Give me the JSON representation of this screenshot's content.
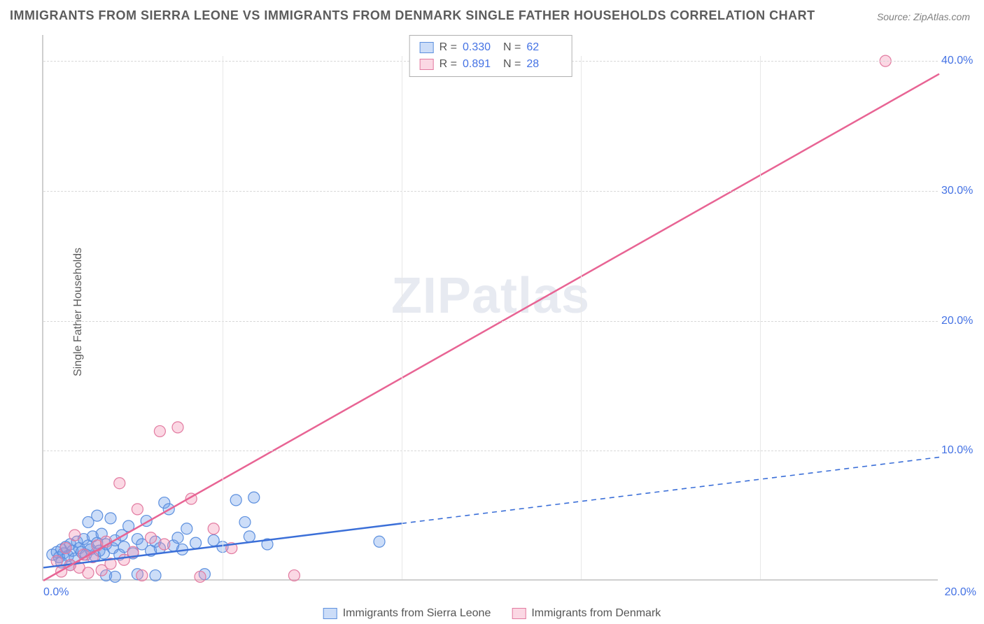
{
  "title": "IMMIGRANTS FROM SIERRA LEONE VS IMMIGRANTS FROM DENMARK SINGLE FATHER HOUSEHOLDS CORRELATION CHART",
  "source": "Source: ZipAtlas.com",
  "ylabel": "Single Father Households",
  "watermark_a": "ZIP",
  "watermark_b": "atlas",
  "chart": {
    "type": "scatter",
    "xlim": [
      0,
      20
    ],
    "ylim": [
      0,
      42
    ],
    "xticks": [
      {
        "v": 0,
        "label": "0.0%"
      },
      {
        "v": 20,
        "label": "20.0%"
      }
    ],
    "yticks": [
      {
        "v": 10,
        "label": "10.0%"
      },
      {
        "v": 20,
        "label": "20.0%"
      },
      {
        "v": 30,
        "label": "30.0%"
      },
      {
        "v": 40,
        "label": "40.0%"
      }
    ],
    "x_gridlines": [
      4,
      8,
      12,
      16
    ],
    "background_color": "#ffffff",
    "grid_color": "#e8e8e8",
    "axis_color": "#cfcfcf",
    "tick_font_color": "#4472e4",
    "label_font_color": "#5c5c5c",
    "title_font_color": "#5c5c5c",
    "title_fontsize": 18,
    "label_fontsize": 16,
    "tick_fontsize": 16,
    "marker_radius": 8,
    "marker_stroke_width": 1.2,
    "trend_line_width_solid": 2.5,
    "trend_line_width_dash": 1.6
  },
  "series": [
    {
      "name": "Immigrants from Sierra Leone",
      "fill": "rgba(108,158,234,0.35)",
      "stroke": "#5c8fde",
      "line_color": "#3b6fd8",
      "r": 0.33,
      "n": 62,
      "trend": {
        "x1": 0,
        "y1": 1.0,
        "x2": 20,
        "y2": 9.5,
        "solid_until_x": 8
      },
      "points": [
        [
          0.2,
          2.0
        ],
        [
          0.3,
          2.2
        ],
        [
          0.35,
          1.8
        ],
        [
          0.4,
          2.4
        ],
        [
          0.45,
          2.1
        ],
        [
          0.5,
          2.6
        ],
        [
          0.55,
          1.9
        ],
        [
          0.6,
          2.8
        ],
        [
          0.65,
          2.3
        ],
        [
          0.7,
          1.7
        ],
        [
          0.75,
          3.0
        ],
        [
          0.8,
          2.5
        ],
        [
          0.85,
          2.2
        ],
        [
          0.9,
          3.2
        ],
        [
          0.95,
          2.0
        ],
        [
          1.0,
          2.7
        ],
        [
          1.05,
          2.4
        ],
        [
          1.1,
          3.4
        ],
        [
          1.15,
          1.9
        ],
        [
          1.2,
          2.9
        ],
        [
          1.25,
          2.3
        ],
        [
          1.3,
          3.6
        ],
        [
          1.35,
          2.1
        ],
        [
          1.4,
          2.8
        ],
        [
          1.5,
          4.8
        ],
        [
          1.55,
          2.5
        ],
        [
          1.6,
          3.1
        ],
        [
          1.7,
          2.0
        ],
        [
          1.75,
          3.5
        ],
        [
          1.8,
          2.6
        ],
        [
          1.9,
          4.2
        ],
        [
          2.0,
          2.1
        ],
        [
          2.1,
          3.2
        ],
        [
          2.2,
          2.8
        ],
        [
          2.3,
          4.6
        ],
        [
          2.4,
          2.3
        ],
        [
          2.5,
          3.0
        ],
        [
          2.6,
          2.5
        ],
        [
          2.7,
          6.0
        ],
        [
          2.8,
          5.5
        ],
        [
          2.9,
          2.7
        ],
        [
          3.0,
          3.3
        ],
        [
          3.1,
          2.4
        ],
        [
          3.2,
          4.0
        ],
        [
          3.4,
          2.9
        ],
        [
          3.6,
          0.5
        ],
        [
          3.8,
          3.1
        ],
        [
          4.0,
          2.6
        ],
        [
          4.3,
          6.2
        ],
        [
          4.5,
          4.5
        ],
        [
          4.6,
          3.4
        ],
        [
          4.7,
          6.4
        ],
        [
          5.0,
          2.8
        ],
        [
          1.4,
          0.4
        ],
        [
          1.6,
          0.3
        ],
        [
          2.1,
          0.5
        ],
        [
          2.5,
          0.4
        ],
        [
          1.0,
          4.5
        ],
        [
          1.2,
          5.0
        ],
        [
          7.5,
          3.0
        ],
        [
          0.4,
          1.4
        ],
        [
          0.6,
          1.2
        ]
      ]
    },
    {
      "name": "Immigrants from Denmark",
      "fill": "rgba(244,144,177,0.35)",
      "stroke": "#e27aa0",
      "line_color": "#e86494",
      "r": 0.891,
      "n": 28,
      "trend": {
        "x1": 0,
        "y1": 0.0,
        "x2": 20,
        "y2": 39.0,
        "solid_until_x": 20
      },
      "points": [
        [
          0.3,
          1.5
        ],
        [
          0.4,
          0.7
        ],
        [
          0.5,
          2.5
        ],
        [
          0.6,
          1.2
        ],
        [
          0.7,
          3.5
        ],
        [
          0.8,
          1.0
        ],
        [
          0.9,
          2.0
        ],
        [
          1.0,
          0.6
        ],
        [
          1.1,
          1.8
        ],
        [
          1.2,
          2.7
        ],
        [
          1.3,
          0.8
        ],
        [
          1.4,
          3.0
        ],
        [
          1.5,
          1.3
        ],
        [
          1.7,
          7.5
        ],
        [
          1.8,
          1.6
        ],
        [
          2.0,
          2.2
        ],
        [
          2.1,
          5.5
        ],
        [
          2.2,
          0.4
        ],
        [
          2.4,
          3.3
        ],
        [
          2.6,
          11.5
        ],
        [
          2.7,
          2.8
        ],
        [
          3.0,
          11.8
        ],
        [
          3.3,
          6.3
        ],
        [
          3.5,
          0.3
        ],
        [
          3.8,
          4.0
        ],
        [
          4.2,
          2.5
        ],
        [
          5.6,
          0.4
        ],
        [
          18.8,
          40.0
        ]
      ]
    }
  ],
  "legend_top": {
    "rows": [
      {
        "fill": "rgba(108,158,234,0.35)",
        "stroke": "#5c8fde",
        "r_label": "R =",
        "r": "0.330",
        "n_label": "N =",
        "n": "62"
      },
      {
        "fill": "rgba(244,144,177,0.35)",
        "stroke": "#e27aa0",
        "r_label": "R =",
        "r": "0.891",
        "n_label": "N =",
        "n": "28"
      }
    ]
  },
  "legend_bottom": {
    "items": [
      {
        "fill": "rgba(108,158,234,0.35)",
        "stroke": "#5c8fde",
        "label": "Immigrants from Sierra Leone"
      },
      {
        "fill": "rgba(244,144,177,0.35)",
        "stroke": "#e27aa0",
        "label": "Immigrants from Denmark"
      }
    ]
  }
}
